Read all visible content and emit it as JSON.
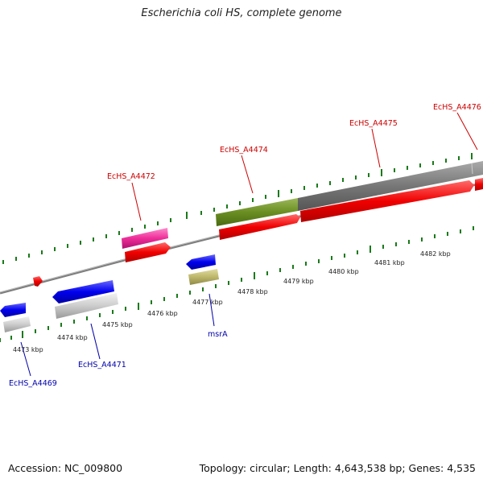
{
  "title": "Escherichia coli HS, complete genome",
  "footer": {
    "accession": "Accession: NC_009800",
    "summary": "Topology: circular; Length: 4,643,538 bp; Genes: 4,535"
  },
  "colors": {
    "forward_label": "#cc0000",
    "reverse_label": "#0000aa",
    "backbone": "#888888",
    "tick": "#1a7a1a"
  },
  "kbp_ticks": [
    "4473 kbp",
    "4474 kbp",
    "4475 kbp",
    "4476 kbp",
    "4477 kbp",
    "4478 kbp",
    "4479 kbp",
    "4480 kbp",
    "4481 kbp",
    "4482 kbp"
  ],
  "gene_labels": [
    {
      "name": "EcHS_A4472",
      "strand": "forward"
    },
    {
      "name": "EcHS_A4474",
      "strand": "forward"
    },
    {
      "name": "EcHS_A4475",
      "strand": "forward"
    },
    {
      "name": "EcHS_A4476",
      "strand": "forward"
    },
    {
      "name": "EcHS_A4469",
      "strand": "reverse"
    },
    {
      "name": "EcHS_A4471",
      "strand": "reverse"
    },
    {
      "name": "msrA",
      "strand": "reverse"
    }
  ]
}
